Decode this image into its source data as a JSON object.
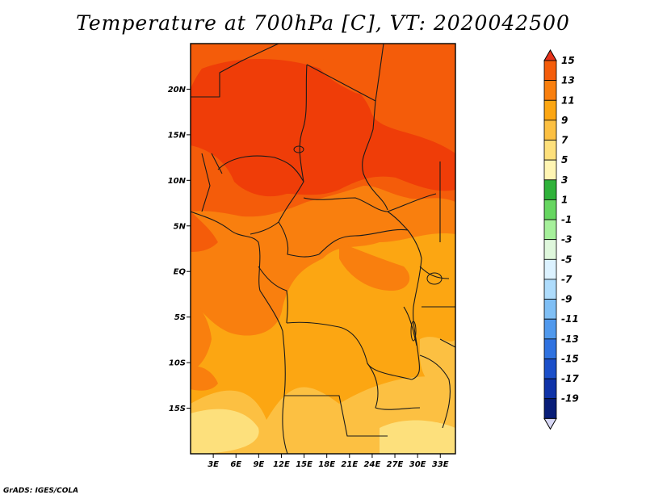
{
  "title": "Temperature at 700hPa [C], VT: 2020042500",
  "credit": "GrADS: IGES/COLA",
  "map": {
    "lon_range": [
      0,
      35
    ],
    "lat_range": [
      -20,
      25
    ],
    "lon_ticks": [
      {
        "value": 3,
        "label": "3E"
      },
      {
        "value": 6,
        "label": "6E"
      },
      {
        "value": 9,
        "label": "9E"
      },
      {
        "value": 12,
        "label": "12E"
      },
      {
        "value": 15,
        "label": "15E"
      },
      {
        "value": 18,
        "label": "18E"
      },
      {
        "value": 21,
        "label": "21E"
      },
      {
        "value": 24,
        "label": "24E"
      },
      {
        "value": 27,
        "label": "27E"
      },
      {
        "value": 30,
        "label": "30E"
      },
      {
        "value": 33,
        "label": "33E"
      }
    ],
    "lat_ticks": [
      {
        "value": 20,
        "label": "20N"
      },
      {
        "value": 15,
        "label": "15N"
      },
      {
        "value": 10,
        "label": "10N"
      },
      {
        "value": 5,
        "label": "5N"
      },
      {
        "value": 0,
        "label": "EQ"
      },
      {
        "value": -5,
        "label": "5S"
      },
      {
        "value": -10,
        "label": "10S"
      },
      {
        "value": -15,
        "label": "15S"
      }
    ],
    "fill_colors": {
      "c7": "#fcc042",
      "c9": "#fca612",
      "c11": "#f97f0e",
      "c13": "#f45c0a",
      "c15": "#ef3d08"
    },
    "border_color": "#1a1a1a"
  },
  "colorbar": {
    "labels": [
      "15",
      "13",
      "11",
      "9",
      "7",
      "5",
      "3",
      "1",
      "-1",
      "-3",
      "-5",
      "-7",
      "-9",
      "-11",
      "-13",
      "-15",
      "-17",
      "-19"
    ],
    "colors": [
      "#e7331b",
      "#f45c0a",
      "#f97f0e",
      "#fca612",
      "#fcc042",
      "#fde07c",
      "#fff5b3",
      "#2fb23a",
      "#66d660",
      "#a6f09b",
      "#dff7dc",
      "#dcf2ff",
      "#aedcfc",
      "#7fbff5",
      "#5099ed",
      "#2f72e0",
      "#1b4fc9",
      "#0f33a8",
      "#081d78",
      "#d8d8f5"
    ]
  }
}
